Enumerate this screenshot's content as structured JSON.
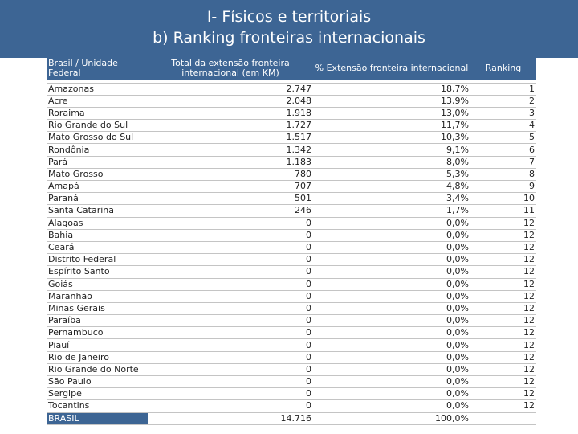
{
  "header": {
    "line1": "I- Físicos e territoriais",
    "line2": "b) Ranking fronteiras internacionais"
  },
  "columns": {
    "name": "Brasil / Unidade Federal",
    "km": "Total da extensão fronteira internacional (em KM)",
    "pct": "% Extensão  fronteira internacional",
    "rank": "Ranking"
  },
  "rows": [
    {
      "name": "Amazonas",
      "km": "2.747",
      "pct": "18,7%",
      "rank": "1"
    },
    {
      "name": "Acre",
      "km": "2.048",
      "pct": "13,9%",
      "rank": "2"
    },
    {
      "name": "Roraima",
      "km": "1.918",
      "pct": "13,0%",
      "rank": "3"
    },
    {
      "name": "Rio Grande do Sul",
      "km": "1.727",
      "pct": "11,7%",
      "rank": "4"
    },
    {
      "name": "Mato Grosso do Sul",
      "km": "1.517",
      "pct": "10,3%",
      "rank": "5"
    },
    {
      "name": "Rondônia",
      "km": "1.342",
      "pct": "9,1%",
      "rank": "6"
    },
    {
      "name": "Pará",
      "km": "1.183",
      "pct": "8,0%",
      "rank": "7"
    },
    {
      "name": "Mato Grosso",
      "km": "780",
      "pct": "5,3%",
      "rank": "8"
    },
    {
      "name": "Amapá",
      "km": "707",
      "pct": "4,8%",
      "rank": "9"
    },
    {
      "name": "Paraná",
      "km": "501",
      "pct": "3,4%",
      "rank": "10"
    },
    {
      "name": "Santa Catarina",
      "km": "246",
      "pct": "1,7%",
      "rank": "11"
    },
    {
      "name": "Alagoas",
      "km": "0",
      "pct": "0,0%",
      "rank": "12"
    },
    {
      "name": "Bahia",
      "km": "0",
      "pct": "0,0%",
      "rank": "12"
    },
    {
      "name": "Ceará",
      "km": "0",
      "pct": "0,0%",
      "rank": "12"
    },
    {
      "name": "Distrito Federal",
      "km": "0",
      "pct": "0,0%",
      "rank": "12"
    },
    {
      "name": "Espírito Santo",
      "km": "0",
      "pct": "0,0%",
      "rank": "12"
    },
    {
      "name": "Goiás",
      "km": "0",
      "pct": "0,0%",
      "rank": "12"
    },
    {
      "name": "Maranhão",
      "km": "0",
      "pct": "0,0%",
      "rank": "12"
    },
    {
      "name": "Minas Gerais",
      "km": "0",
      "pct": "0,0%",
      "rank": "12"
    },
    {
      "name": "Paraíba",
      "km": "0",
      "pct": "0,0%",
      "rank": "12"
    },
    {
      "name": "Pernambuco",
      "km": "0",
      "pct": "0,0%",
      "rank": "12"
    },
    {
      "name": "Piauí",
      "km": "0",
      "pct": "0,0%",
      "rank": "12"
    },
    {
      "name": "Rio de Janeiro",
      "km": "0",
      "pct": "0,0%",
      "rank": "12"
    },
    {
      "name": "Rio Grande do Norte",
      "km": "0",
      "pct": "0,0%",
      "rank": "12"
    },
    {
      "name": "São Paulo",
      "km": "0",
      "pct": "0,0%",
      "rank": "12"
    },
    {
      "name": "Sergipe",
      "km": "0",
      "pct": "0,0%",
      "rank": "12"
    },
    {
      "name": "Tocantins",
      "km": "0",
      "pct": "0,0%",
      "rank": "12"
    }
  ],
  "total": {
    "name": "BRASIL",
    "km": "14.716",
    "pct": "100,0%",
    "rank": ""
  },
  "colors": {
    "banner": "#3d6594",
    "text": "#222222"
  }
}
